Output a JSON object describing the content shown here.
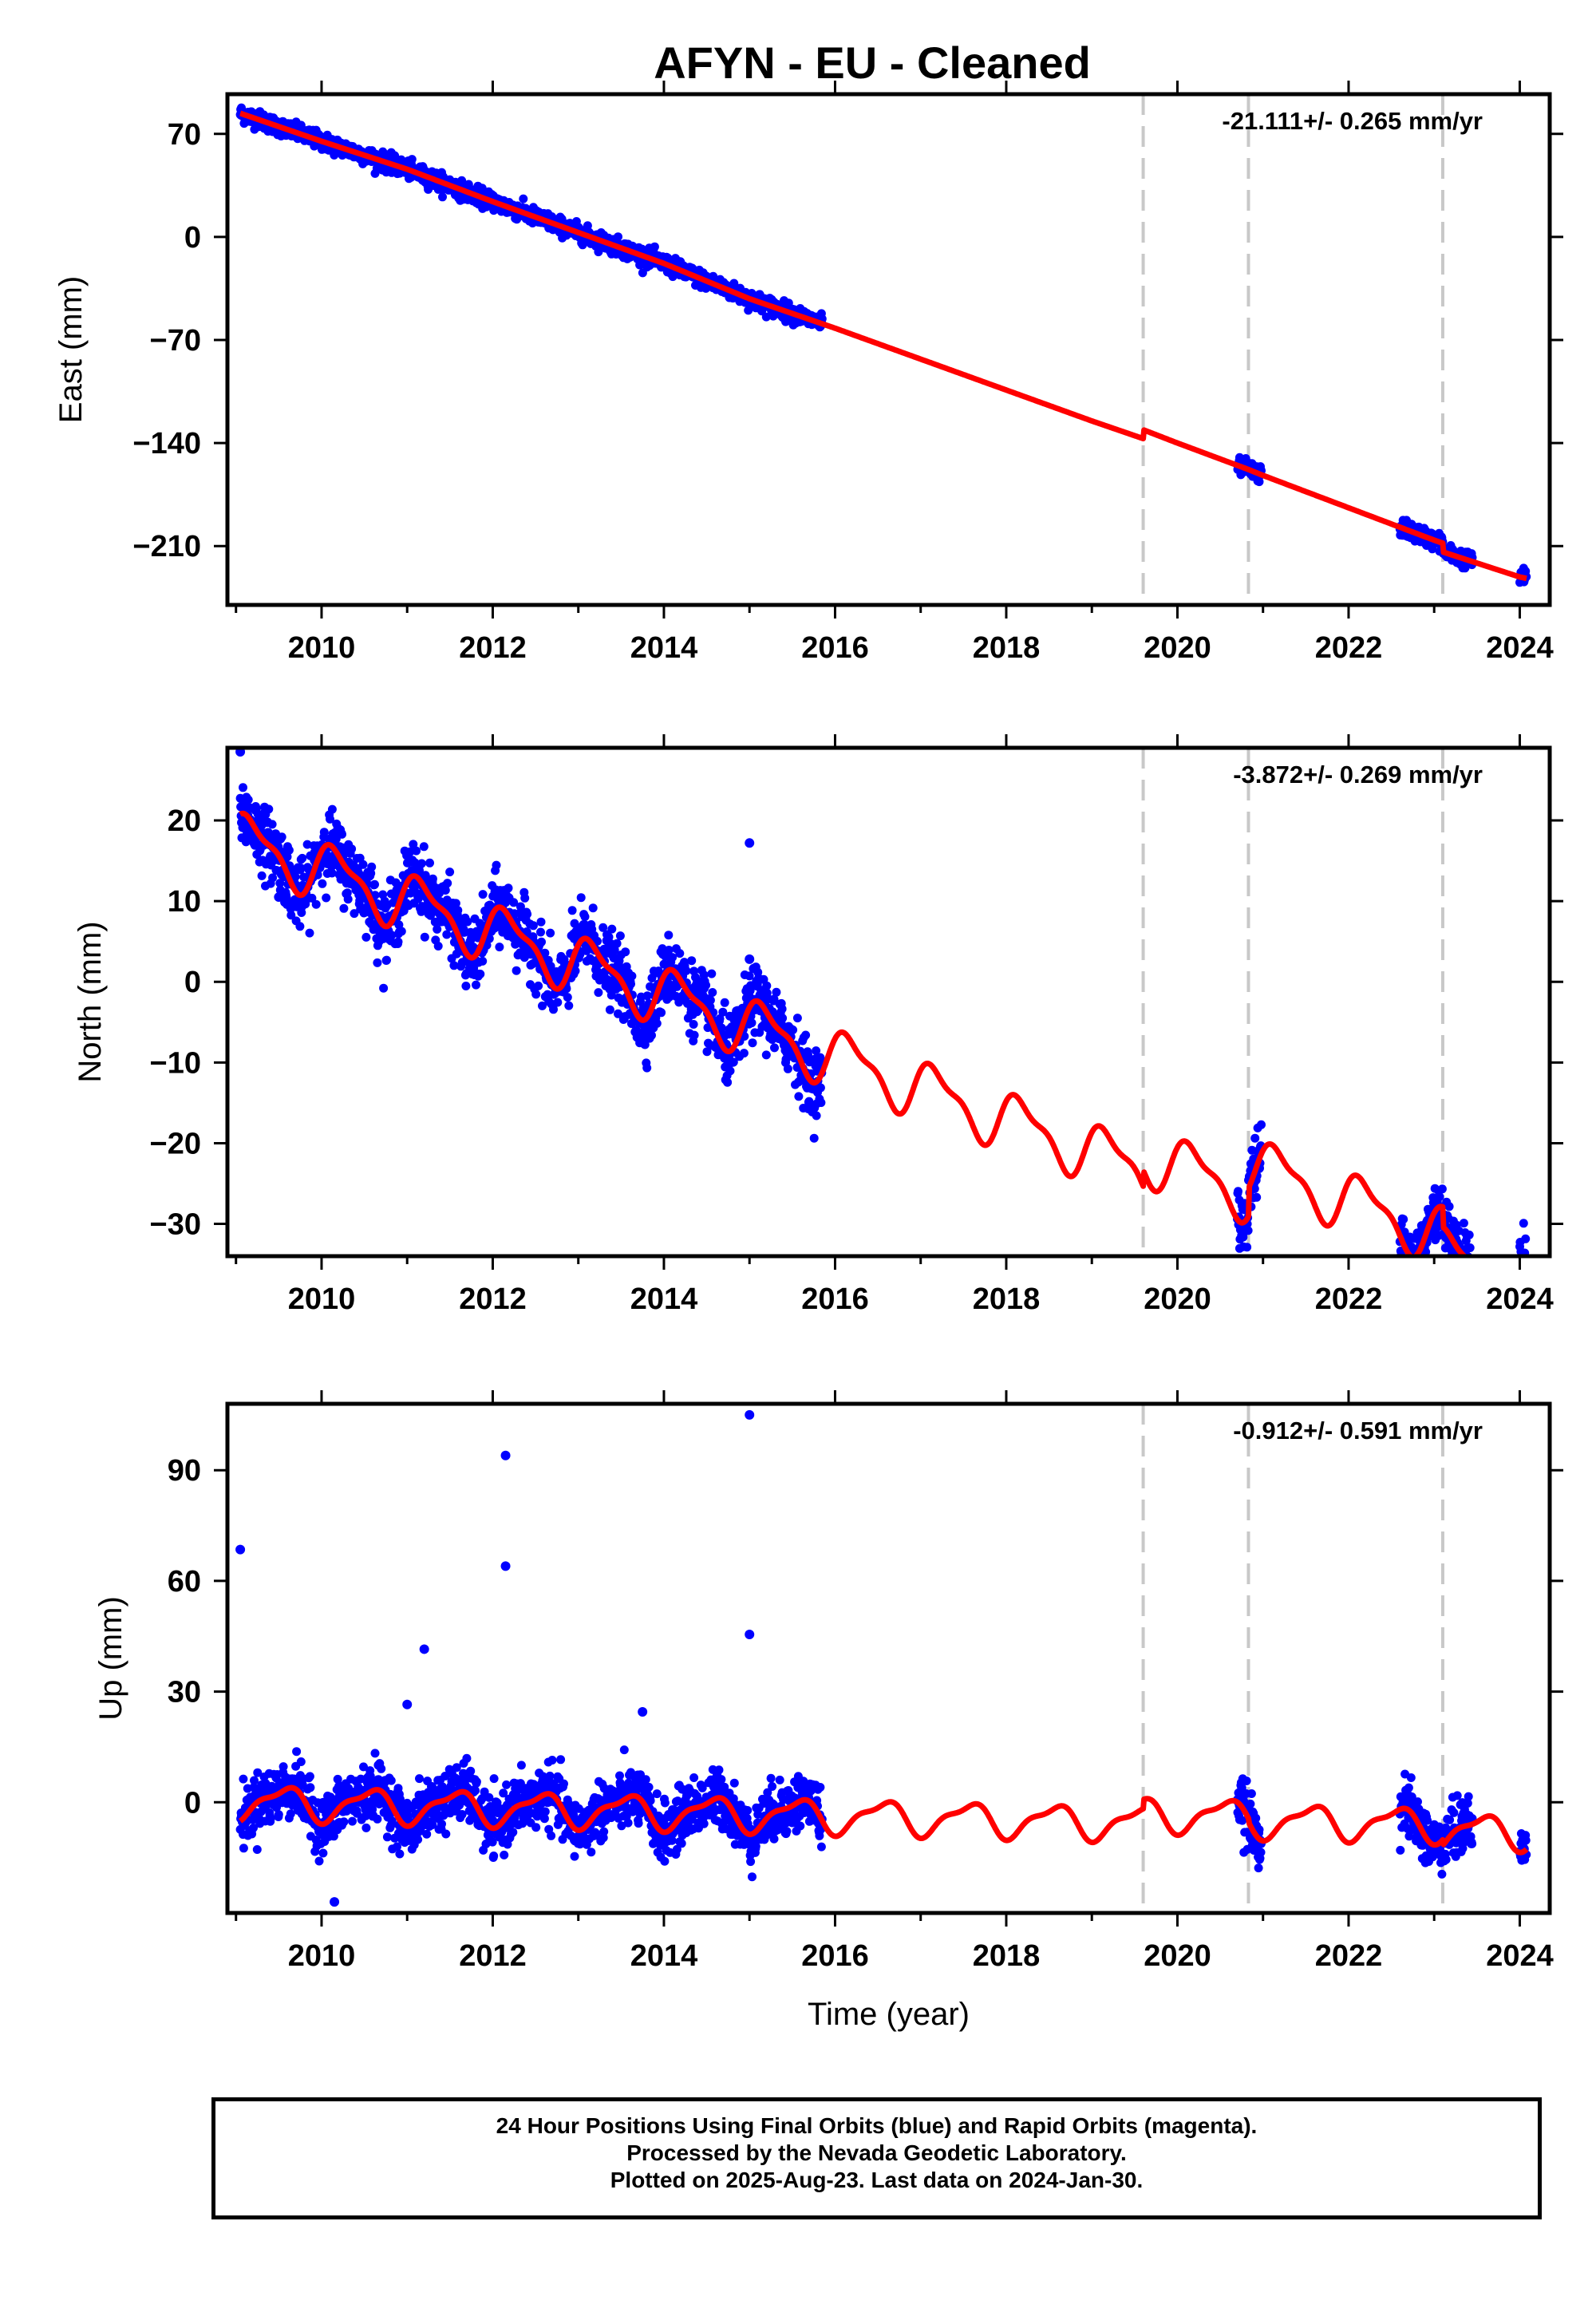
{
  "chart_data": [
    {
      "type": "scatter",
      "title": "AFYN  - EU - Cleaned",
      "ylabel": "East (mm)",
      "xlabel": "",
      "xlim": [
        2008.9,
        2024.35
      ],
      "ylim": [
        -250,
        97
      ],
      "yticks": [
        70,
        0,
        -70,
        -140,
        -210
      ],
      "xticks": [
        2010,
        2012,
        2014,
        2016,
        2018,
        2020,
        2022,
        2024
      ],
      "annotation": "-21.111+/- 0.265 mm/yr",
      "grid": false,
      "breaks": [
        2019.6,
        2020.83,
        2023.1
      ],
      "observations": {
        "name": "24 Hour Positions (blue)",
        "color": "#0000ff",
        "segments": [
          [
            2009.05,
            2015.85
          ],
          [
            2020.7,
            2020.98
          ],
          [
            2022.6,
            2023.45
          ],
          [
            2024.0,
            2024.08
          ]
        ]
      },
      "model_curve": {
        "color": "#ff0000",
        "x": [
          2009.05,
          2010.0,
          2011.0,
          2012.0,
          2013.0,
          2014.0,
          2015.0,
          2016.0,
          2017.0,
          2018.0,
          2019.0,
          2019.6,
          2019.6,
          2020.0,
          2020.83,
          2021.0,
          2022.0,
          2023.0,
          2023.1,
          2023.1,
          2024.0,
          2024.08
        ],
        "y": [
          84,
          65,
          46,
          24,
          3,
          -18,
          -42,
          -62,
          -83,
          -104,
          -125,
          -137,
          -131,
          -140,
          -158,
          -162,
          -184,
          -206,
          -208,
          -214,
          -231,
          -232
        ]
      }
    },
    {
      "type": "scatter",
      "title": "",
      "ylabel": "North (mm)",
      "xlabel": "",
      "xlim": [
        2008.9,
        2024.35
      ],
      "ylim": [
        -34,
        29
      ],
      "yticks": [
        20,
        10,
        0,
        -10,
        -20,
        -30
      ],
      "xticks": [
        2010,
        2012,
        2014,
        2016,
        2018,
        2020,
        2022,
        2024
      ],
      "annotation": "-3.872+/- 0.269 mm/yr",
      "grid": false,
      "breaks": [
        2019.6,
        2020.83,
        2023.1
      ],
      "observations": {
        "color": "#0000ff",
        "segments": [
          [
            2009.05,
            2015.85
          ],
          [
            2020.7,
            2020.98
          ],
          [
            2022.6,
            2023.45
          ],
          [
            2024.0,
            2024.08
          ]
        ],
        "outliers": [
          [
            2009.05,
            28.5
          ],
          [
            2015.0,
            17.2
          ],
          [
            2015.0,
            2.8
          ],
          [
            2009.5,
            10.5
          ]
        ]
      },
      "model": {
        "color": "#ff0000",
        "trend_mm_per_yr": -3.872,
        "seasonal_period_yr": 1.0
      }
    },
    {
      "type": "scatter",
      "title": "",
      "ylabel": "Up (mm)",
      "xlabel": "Time (year)",
      "xlim": [
        2008.9,
        2024.35
      ],
      "ylim": [
        -30,
        108
      ],
      "yticks": [
        90,
        60,
        30,
        0
      ],
      "xticks": [
        2010,
        2012,
        2014,
        2016,
        2018,
        2020,
        2022,
        2024
      ],
      "annotation": "-0.912+/- 0.591 mm/yr",
      "grid": false,
      "breaks": [
        2019.6,
        2020.83,
        2023.1
      ],
      "observations": {
        "color": "#0000ff",
        "segments": [
          [
            2009.05,
            2015.85
          ],
          [
            2020.7,
            2020.98
          ],
          [
            2022.6,
            2023.45
          ],
          [
            2024.0,
            2024.08
          ]
        ],
        "outliers": [
          [
            2009.05,
            68.5
          ],
          [
            2012.15,
            94
          ],
          [
            2012.15,
            64
          ],
          [
            2015.0,
            105
          ],
          [
            2015.0,
            45.5
          ],
          [
            2011.2,
            41.5
          ],
          [
            2011.0,
            26.5
          ],
          [
            2010.15,
            -27
          ],
          [
            2013.75,
            24.5
          ]
        ]
      },
      "model": {
        "color": "#ff0000",
        "trend_mm_per_yr": -0.912,
        "seasonal_period_yr": 1.0
      }
    }
  ],
  "footer": {
    "line1": "24 Hour Positions Using Final Orbits (blue) and Rapid Orbits (magenta).",
    "line2": "Processed by the Nevada Geodetic Laboratory.",
    "line3": "Plotted on 2025-Aug-23. Last data on 2024-Jan-30."
  }
}
